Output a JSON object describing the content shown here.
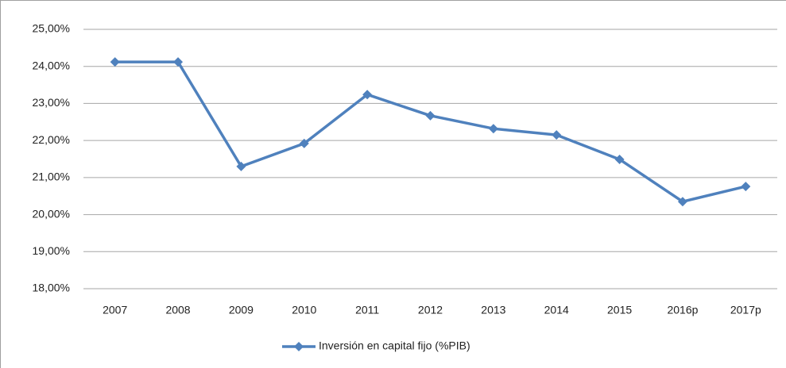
{
  "chart_data": {
    "type": "line",
    "categories": [
      "2007",
      "2008",
      "2009",
      "2010",
      "2011",
      "2012",
      "2013",
      "2014",
      "2015",
      "2016p",
      "2017p"
    ],
    "series": [
      {
        "name": "Inversión en capital fijo (%PIB)",
        "color": "#4f81bd",
        "values": [
          24.12,
          24.12,
          21.3,
          21.92,
          23.24,
          22.67,
          22.32,
          22.15,
          21.49,
          20.35,
          20.76
        ]
      }
    ],
    "ylim": [
      18,
      25
    ],
    "yticks": [
      {
        "value": 18,
        "label": "18,00%"
      },
      {
        "value": 19,
        "label": "19,00%"
      },
      {
        "value": 20,
        "label": "20,00%"
      },
      {
        "value": 21,
        "label": "21,00%"
      },
      {
        "value": 22,
        "label": "22,00%"
      },
      {
        "value": 23,
        "label": "23,00%"
      },
      {
        "value": 24,
        "label": "24,00%"
      },
      {
        "value": 25,
        "label": "25,00%"
      }
    ],
    "grid": true,
    "legend": "bottom"
  }
}
